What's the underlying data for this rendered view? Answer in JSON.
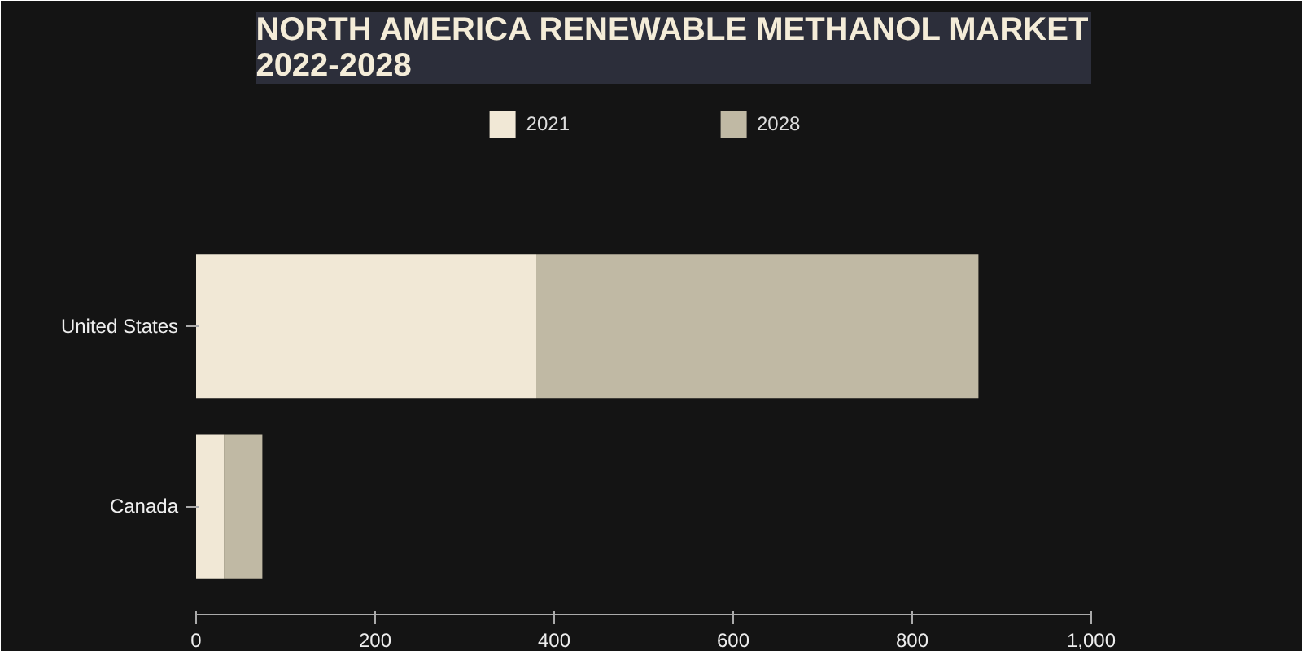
{
  "chart_data": {
    "type": "bar",
    "orientation": "horizontal",
    "stacked": true,
    "title": "NORTH AMERICA RENEWABLE METHANOL MARKET 2022-2028",
    "categories": [
      "United States",
      "Canada"
    ],
    "series": [
      {
        "name": "2021",
        "color": "#f1e8d6",
        "values": [
          380,
          31
        ]
      },
      {
        "name": "2028",
        "color": "#c0b9a4",
        "values": [
          494,
          43
        ]
      }
    ],
    "xlim": [
      0,
      1000
    ],
    "xticks": [
      0,
      200,
      400,
      600,
      800,
      {
        "value": 1000,
        "label": "1,000"
      }
    ],
    "grid": false,
    "legend": "top"
  }
}
